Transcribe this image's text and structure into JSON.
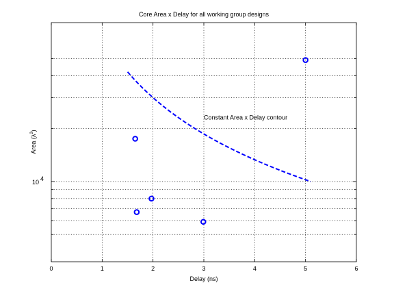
{
  "chart_data": {
    "type": "scatter",
    "title": "Core Area x Delay for all working group designs",
    "xlabel": "Delay (ns)",
    "ylabel_main": "Area (λ",
    "ylabel_sup": "2",
    "ylabel_tail": ")",
    "xlim": [
      0,
      6
    ],
    "ylim": [
      3500,
      80000
    ],
    "y_scale": "log",
    "x_ticks": [
      0,
      1,
      2,
      3,
      4,
      5,
      6
    ],
    "x_tick_labels": [
      "0",
      "1",
      "2",
      "3",
      "4",
      "5",
      "6"
    ],
    "y_major_tick": 10000,
    "y_major_tick_base": "10",
    "y_major_tick_exp": "4",
    "y_minor_gridlines": [
      5000,
      6000,
      7000,
      8000,
      9000,
      20000,
      30000,
      40000,
      50000
    ],
    "grid": true,
    "points": [
      {
        "x": 1.65,
        "y": 17500
      },
      {
        "x": 1.68,
        "y": 6700
      },
      {
        "x": 1.97,
        "y": 8000
      },
      {
        "x": 2.99,
        "y": 5900
      },
      {
        "x": 5.0,
        "y": 49000
      }
    ],
    "marker_color": "#0000ff",
    "contour": {
      "label": "Constant Area x Delay contour",
      "label_anchor": {
        "x": 3.0,
        "y": 22500
      },
      "color": "#0000ff",
      "style": "dashed",
      "x_start": 1.5,
      "x_end": 5.1,
      "y_start": 42000,
      "y_end": 10000
    }
  }
}
